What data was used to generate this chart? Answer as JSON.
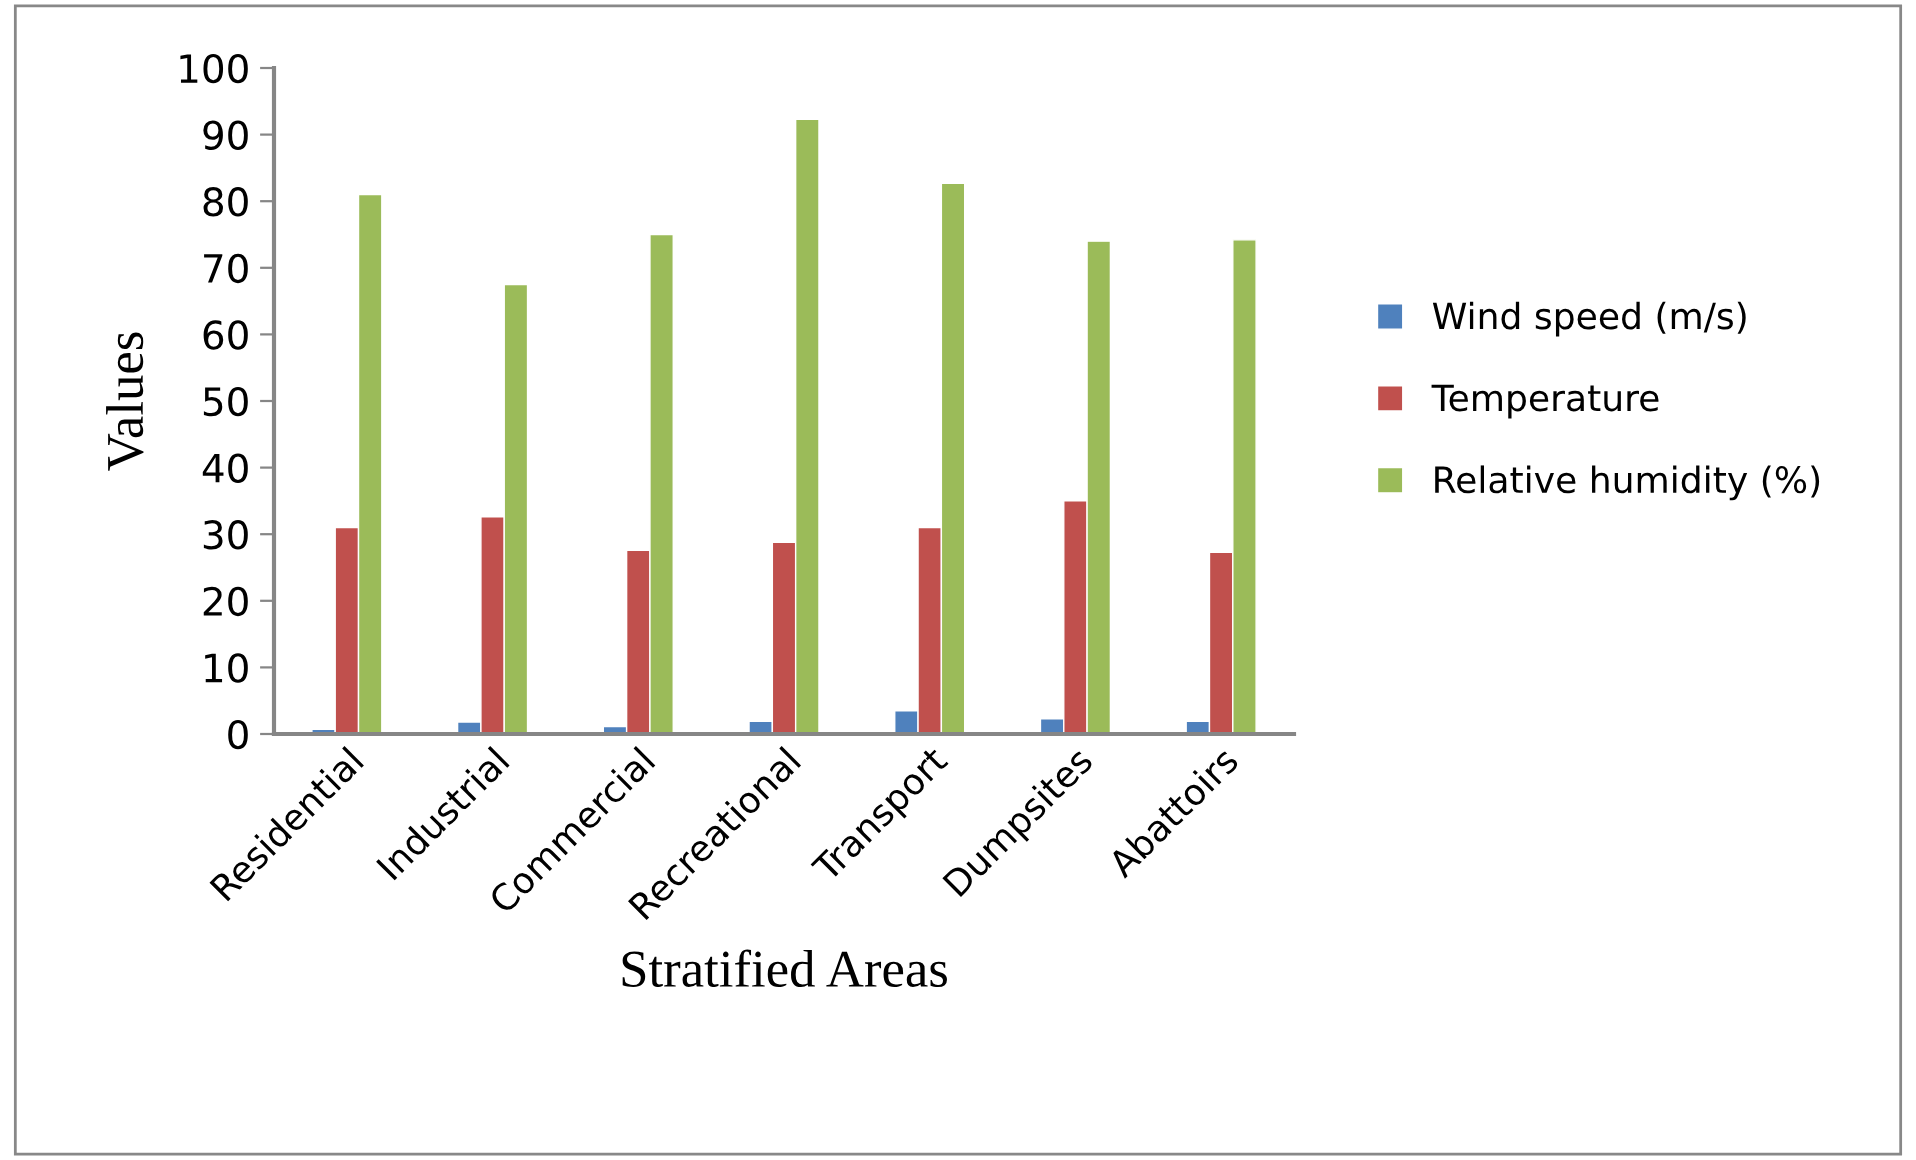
{
  "chart_data": {
    "type": "bar",
    "xlabel": "Stratified Areas",
    "ylabel": "Values",
    "categories": [
      "Residential",
      "Industrial",
      "Commercial",
      "Recreational",
      "Transport",
      "Dumpsites",
      "Abattoirs"
    ],
    "series": [
      {
        "name": "Wind speed (m/s)",
        "color": "#4f81bd",
        "values": [
          0.7,
          1.8,
          1.1,
          1.9,
          3.5,
          2.3,
          1.9
        ]
      },
      {
        "name": "Temperature",
        "color": "#c0504d",
        "values": [
          31,
          32.6,
          27.6,
          28.8,
          31,
          35,
          27.3
        ]
      },
      {
        "name": "Relative humidity (%)",
        "color": "#9bbb59",
        "values": [
          81,
          67.5,
          75,
          92.3,
          82.7,
          74,
          74.2
        ]
      }
    ],
    "ylim": [
      0,
      100
    ],
    "yticks": [
      0,
      10,
      20,
      30,
      40,
      50,
      60,
      70,
      80,
      90,
      100
    ],
    "grid": false,
    "legend": "right"
  }
}
